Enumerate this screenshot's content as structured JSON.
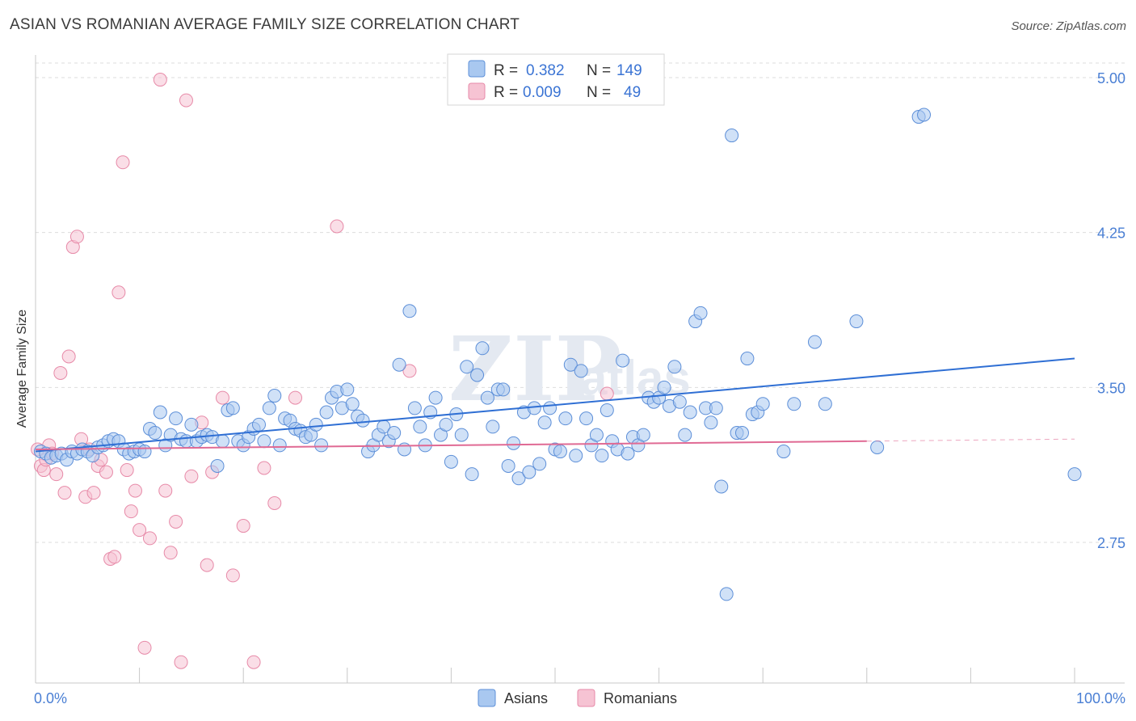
{
  "title": "ASIAN VS ROMANIAN AVERAGE FAMILY SIZE CORRELATION CHART",
  "source": "Source: ZipAtlas.com",
  "watermark": "ZIPatlas",
  "legend_top": {
    "rows": [
      {
        "r_label": "R =",
        "r_value": "0.382",
        "n_label": "N =",
        "n_value": "149"
      },
      {
        "r_label": "R =",
        "r_value": "0.009",
        "n_label": "N =",
        "n_value": "49"
      }
    ]
  },
  "legend_bottom": {
    "asians": "Asians",
    "romanians": "Romanians"
  },
  "colors": {
    "asian_fill": "#a9c8f0",
    "asian_stroke": "#5d8fd8",
    "asian_line": "#2f6fd4",
    "romanian_fill": "#f6c3d3",
    "romanian_stroke": "#e78aa8",
    "romanian_line": "#e06a94",
    "tick_label": "#4a7fd4"
  },
  "chart_data": {
    "type": "scatter",
    "title": "ASIAN VS ROMANIAN AVERAGE FAMILY SIZE CORRELATION CHART",
    "xlabel": "",
    "ylabel": "Average Family Size",
    "xlim": [
      0,
      100
    ],
    "ylim": [
      2.0,
      5.1
    ],
    "x_tick_labels": [
      "0.0%",
      "100.0%"
    ],
    "y_ticks": [
      2.75,
      3.5,
      4.25,
      5.0
    ],
    "y_tick_labels": [
      "2.75",
      "3.50",
      "4.25",
      "5.00"
    ],
    "grid": "horizontal dashed",
    "legend_position": "top-center",
    "series": [
      {
        "name": "Asians",
        "trend": {
          "x": [
            0,
            100
          ],
          "y": [
            3.19,
            3.64
          ]
        },
        "points": [
          [
            0.5,
            3.19
          ],
          [
            1,
            3.18
          ],
          [
            1.5,
            3.16
          ],
          [
            2,
            3.17
          ],
          [
            2.5,
            3.18
          ],
          [
            3,
            3.15
          ],
          [
            3.5,
            3.19
          ],
          [
            4,
            3.18
          ],
          [
            4.5,
            3.2
          ],
          [
            5,
            3.19
          ],
          [
            5.5,
            3.17
          ],
          [
            6,
            3.21
          ],
          [
            6.5,
            3.22
          ],
          [
            7,
            3.24
          ],
          [
            7.5,
            3.25
          ],
          [
            8,
            3.24
          ],
          [
            8.5,
            3.2
          ],
          [
            9,
            3.18
          ],
          [
            9.5,
            3.19
          ],
          [
            10,
            3.2
          ],
          [
            10.5,
            3.19
          ],
          [
            11,
            3.3
          ],
          [
            11.5,
            3.28
          ],
          [
            12,
            3.38
          ],
          [
            12.5,
            3.22
          ],
          [
            13,
            3.27
          ],
          [
            13.5,
            3.35
          ],
          [
            14,
            3.25
          ],
          [
            14.5,
            3.24
          ],
          [
            15,
            3.32
          ],
          [
            15.5,
            3.24
          ],
          [
            16,
            3.26
          ],
          [
            16.5,
            3.27
          ],
          [
            17,
            3.26
          ],
          [
            17.5,
            3.12
          ],
          [
            18,
            3.24
          ],
          [
            18.5,
            3.39
          ],
          [
            19,
            3.4
          ],
          [
            19.5,
            3.24
          ],
          [
            20,
            3.22
          ],
          [
            20.5,
            3.26
          ],
          [
            21,
            3.3
          ],
          [
            21.5,
            3.32
          ],
          [
            22,
            3.24
          ],
          [
            22.5,
            3.4
          ],
          [
            23,
            3.46
          ],
          [
            23.5,
            3.22
          ],
          [
            24,
            3.35
          ],
          [
            24.5,
            3.34
          ],
          [
            25,
            3.3
          ],
          [
            25.5,
            3.29
          ],
          [
            26,
            3.26
          ],
          [
            26.5,
            3.27
          ],
          [
            27,
            3.32
          ],
          [
            27.5,
            3.22
          ],
          [
            28,
            3.38
          ],
          [
            28.5,
            3.45
          ],
          [
            29,
            3.48
          ],
          [
            29.5,
            3.4
          ],
          [
            30,
            3.49
          ],
          [
            30.5,
            3.42
          ],
          [
            31,
            3.36
          ],
          [
            31.5,
            3.34
          ],
          [
            32,
            3.19
          ],
          [
            32.5,
            3.22
          ],
          [
            33,
            3.27
          ],
          [
            33.5,
            3.31
          ],
          [
            34,
            3.24
          ],
          [
            34.5,
            3.28
          ],
          [
            35,
            3.61
          ],
          [
            35.5,
            3.2
          ],
          [
            36,
            3.87
          ],
          [
            36.5,
            3.4
          ],
          [
            37,
            3.31
          ],
          [
            37.5,
            3.22
          ],
          [
            38,
            3.38
          ],
          [
            38.5,
            3.45
          ],
          [
            39,
            3.27
          ],
          [
            39.5,
            3.32
          ],
          [
            40,
            3.14
          ],
          [
            40.5,
            3.37
          ],
          [
            41,
            3.27
          ],
          [
            41.5,
            3.6
          ],
          [
            42,
            3.08
          ],
          [
            42.5,
            3.56
          ],
          [
            43,
            3.69
          ],
          [
            43.5,
            3.45
          ],
          [
            44,
            3.31
          ],
          [
            44.5,
            3.49
          ],
          [
            45,
            3.49
          ],
          [
            45.5,
            3.12
          ],
          [
            46,
            3.23
          ],
          [
            46.5,
            3.06
          ],
          [
            47,
            3.38
          ],
          [
            47.5,
            3.09
          ],
          [
            48,
            3.4
          ],
          [
            48.5,
            3.13
          ],
          [
            49,
            3.33
          ],
          [
            49.5,
            3.4
          ],
          [
            50,
            3.2
          ],
          [
            50.5,
            3.19
          ],
          [
            51,
            3.35
          ],
          [
            51.5,
            3.61
          ],
          [
            52,
            3.17
          ],
          [
            52.5,
            3.58
          ],
          [
            53,
            3.35
          ],
          [
            53.5,
            3.22
          ],
          [
            54,
            3.27
          ],
          [
            54.5,
            3.17
          ],
          [
            55,
            3.39
          ],
          [
            55.5,
            3.24
          ],
          [
            56,
            3.2
          ],
          [
            56.5,
            3.63
          ],
          [
            57,
            3.18
          ],
          [
            57.5,
            3.26
          ],
          [
            58,
            3.22
          ],
          [
            58.5,
            3.27
          ],
          [
            59,
            3.45
          ],
          [
            59.5,
            3.43
          ],
          [
            60,
            3.45
          ],
          [
            60.5,
            3.5
          ],
          [
            61,
            3.41
          ],
          [
            61.5,
            3.6
          ],
          [
            62,
            3.43
          ],
          [
            62.5,
            3.27
          ],
          [
            63,
            3.38
          ],
          [
            63.5,
            3.82
          ],
          [
            64,
            3.86
          ],
          [
            64.5,
            3.4
          ],
          [
            65,
            3.33
          ],
          [
            65.5,
            3.4
          ],
          [
            66,
            3.02
          ],
          [
            66.5,
            2.5
          ],
          [
            67,
            4.72
          ],
          [
            67.5,
            3.28
          ],
          [
            68,
            3.28
          ],
          [
            68.5,
            3.64
          ],
          [
            69,
            3.37
          ],
          [
            69.5,
            3.38
          ],
          [
            70,
            3.42
          ],
          [
            72,
            3.19
          ],
          [
            73,
            3.42
          ],
          [
            75,
            3.72
          ],
          [
            76,
            3.42
          ],
          [
            79,
            3.82
          ],
          [
            81,
            3.21
          ],
          [
            85,
            4.81
          ],
          [
            85.5,
            4.82
          ],
          [
            100,
            3.08
          ]
        ]
      },
      {
        "name": "Romanians",
        "trend": {
          "x": [
            0,
            80
          ],
          "y": [
            3.2,
            3.24
          ]
        },
        "trend_extension": {
          "x": [
            80,
            100
          ],
          "y": [
            3.24,
            3.25
          ]
        },
        "points": [
          [
            0.2,
            3.2
          ],
          [
            0.5,
            3.12
          ],
          [
            0.8,
            3.1
          ],
          [
            1,
            3.15
          ],
          [
            1.3,
            3.22
          ],
          [
            1.6,
            3.18
          ],
          [
            2,
            3.08
          ],
          [
            2.4,
            3.57
          ],
          [
            2.8,
            2.99
          ],
          [
            3.2,
            3.65
          ],
          [
            3.6,
            4.18
          ],
          [
            4,
            4.23
          ],
          [
            4.4,
            3.25
          ],
          [
            4.8,
            2.97
          ],
          [
            5.2,
            3.2
          ],
          [
            5.6,
            2.99
          ],
          [
            6,
            3.12
          ],
          [
            6.3,
            3.15
          ],
          [
            6.8,
            3.09
          ],
          [
            7.2,
            2.67
          ],
          [
            7.6,
            2.68
          ],
          [
            8,
            3.96
          ],
          [
            8.4,
            4.59
          ],
          [
            8.8,
            3.1
          ],
          [
            9.2,
            2.9
          ],
          [
            9.6,
            3.0
          ],
          [
            10,
            2.81
          ],
          [
            10.5,
            2.24
          ],
          [
            11,
            2.77
          ],
          [
            12,
            4.99
          ],
          [
            12.5,
            3.0
          ],
          [
            13,
            2.7
          ],
          [
            13.5,
            2.85
          ],
          [
            14,
            2.17
          ],
          [
            14.5,
            4.89
          ],
          [
            15,
            3.07
          ],
          [
            16,
            3.33
          ],
          [
            16.5,
            2.64
          ],
          [
            17,
            3.09
          ],
          [
            18,
            3.45
          ],
          [
            19,
            2.59
          ],
          [
            20,
            2.83
          ],
          [
            21,
            2.17
          ],
          [
            22,
            3.11
          ],
          [
            23,
            2.94
          ],
          [
            25,
            3.45
          ],
          [
            29,
            4.28
          ],
          [
            36,
            3.58
          ],
          [
            55,
            3.47
          ]
        ]
      }
    ]
  }
}
